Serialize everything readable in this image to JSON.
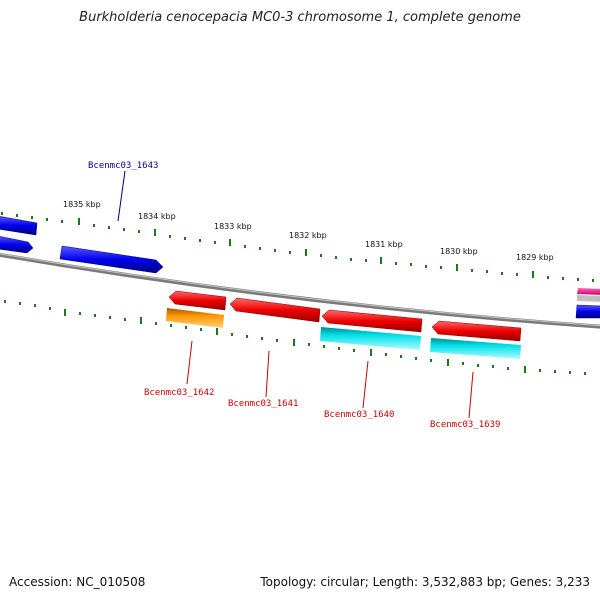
{
  "title": "Burkholderia cenocepacia MC0-3 chromosome 1, complete genome",
  "footer": {
    "accession": "Accession: NC_010508",
    "summary": "Topology: circular; Length: 3,532,883 bp; Genes: 3,233"
  },
  "colors": {
    "forward_gene": "#0000ee",
    "reverse_gene": "#ee0000",
    "cyan_feature": "#00e0e8",
    "orange_feature": "#ff9900",
    "magenta_feature": "#ee1188",
    "backbone": "#808080",
    "ticks": "#1a7a1a",
    "forward_label": "#00008b",
    "reverse_label": "#cc0000"
  },
  "scale_labels": [
    "1835 kbp",
    "1834 kbp",
    "1833 kbp",
    "1832 kbp",
    "1831 kbp",
    "1830 kbp",
    "1829 kbp"
  ],
  "gene_labels": {
    "g1643": "Bcenmc03_1643",
    "g1642": "Bcenmc03_1642",
    "g1641": "Bcenmc03_1641",
    "g1640": "Bcenmc03_1640",
    "g1639": "Bcenmc03_1639"
  }
}
